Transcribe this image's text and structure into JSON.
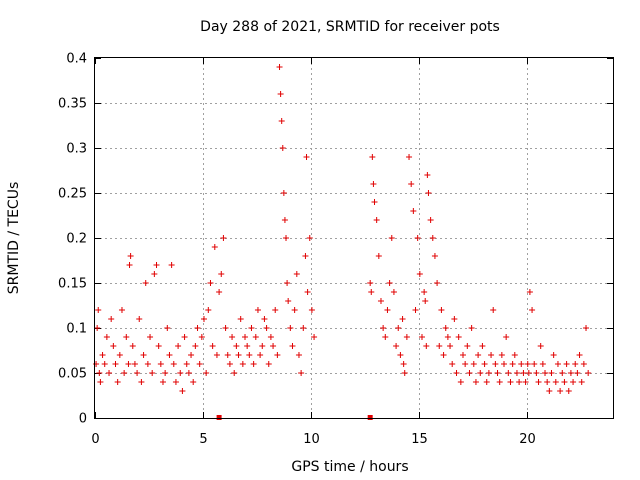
{
  "chart_data": {
    "type": "scatter",
    "title": "Day 288 of 2021, SRMTID for receiver pots",
    "xlabel": "GPS time / hours",
    "ylabel": "SRMTID / TECUs",
    "xlim": [
      0,
      24
    ],
    "ylim": [
      0,
      0.4
    ],
    "xticks": [
      0,
      5,
      10,
      15,
      20
    ],
    "xtick_labels": [
      "0",
      "5",
      "10",
      "15",
      "20"
    ],
    "yticks": [
      0,
      0.05,
      0.1,
      0.15,
      0.2,
      0.25,
      0.3,
      0.35,
      0.4
    ],
    "ytick_labels": [
      "0",
      "0.05",
      "0.1",
      "0.15",
      "0.2",
      "0.25",
      "0.3",
      "0.35",
      "0.4"
    ],
    "grid": true,
    "marker": "+",
    "color": "#e00000",
    "data_gap_hours": [
      10.2,
      12.7
    ],
    "gap_markers_x": [
      5.75,
      12.75
    ],
    "series": [
      {
        "name": "SRMTID",
        "x": [
          0.05,
          0.1,
          0.15,
          0.2,
          0.25,
          0.35,
          0.45,
          0.55,
          0.65,
          0.75,
          0.85,
          0.95,
          1.05,
          1.15,
          1.25,
          1.35,
          1.45,
          1.55,
          1.6,
          1.65,
          1.75,
          1.85,
          1.95,
          2.05,
          2.15,
          2.25,
          2.35,
          2.45,
          2.55,
          2.65,
          2.75,
          2.85,
          2.95,
          3.05,
          3.15,
          3.25,
          3.35,
          3.45,
          3.55,
          3.65,
          3.75,
          3.85,
          3.95,
          4.05,
          4.15,
          4.25,
          4.35,
          4.45,
          4.55,
          4.65,
          4.75,
          4.85,
          4.95,
          5.05,
          5.15,
          5.25,
          5.35,
          5.45,
          5.55,
          5.65,
          5.75,
          5.85,
          5.95,
          6.05,
          6.15,
          6.25,
          6.35,
          6.45,
          6.55,
          6.65,
          6.75,
          6.85,
          6.95,
          7.05,
          7.15,
          7.25,
          7.35,
          7.45,
          7.55,
          7.65,
          7.75,
          7.85,
          7.95,
          8.05,
          8.15,
          8.25,
          8.35,
          8.45,
          8.55,
          8.6,
          8.65,
          8.7,
          8.75,
          8.8,
          8.85,
          8.9,
          8.95,
          9.05,
          9.15,
          9.25,
          9.35,
          9.45,
          9.55,
          9.65,
          9.75,
          9.8,
          9.85,
          9.95,
          10.05,
          10.15,
          12.75,
          12.8,
          12.85,
          12.9,
          12.95,
          13.05,
          13.15,
          13.25,
          13.35,
          13.45,
          13.55,
          13.65,
          13.75,
          13.85,
          13.95,
          14.05,
          14.15,
          14.25,
          14.3,
          14.35,
          14.45,
          14.55,
          14.65,
          14.75,
          14.85,
          14.95,
          15.05,
          15.15,
          15.25,
          15.3,
          15.35,
          15.4,
          15.45,
          15.55,
          15.65,
          15.75,
          15.85,
          15.95,
          16.05,
          16.15,
          16.25,
          16.35,
          16.45,
          16.55,
          16.65,
          16.75,
          16.85,
          16.95,
          17.05,
          17.15,
          17.25,
          17.35,
          17.45,
          17.55,
          17.65,
          17.75,
          17.85,
          17.95,
          18.05,
          18.15,
          18.25,
          18.35,
          18.45,
          18.55,
          18.65,
          18.75,
          18.85,
          18.95,
          19.05,
          19.15,
          19.25,
          19.35,
          19.45,
          19.55,
          19.65,
          19.75,
          19.85,
          19.95,
          20.05,
          20.1,
          20.15,
          20.25,
          20.35,
          20.45,
          20.55,
          20.65,
          20.75,
          20.85,
          20.95,
          21.05,
          21.15,
          21.25,
          21.35,
          21.45,
          21.55,
          21.65,
          21.75,
          21.85,
          21.95,
          22.05,
          22.15,
          22.25,
          22.35,
          22.45,
          22.55,
          22.65,
          22.75,
          22.85
        ],
        "y": [
          0.06,
          0.1,
          0.12,
          0.05,
          0.04,
          0.07,
          0.06,
          0.09,
          0.05,
          0.11,
          0.08,
          0.06,
          0.04,
          0.07,
          0.12,
          0.05,
          0.09,
          0.06,
          0.17,
          0.18,
          0.08,
          0.06,
          0.05,
          0.11,
          0.04,
          0.07,
          0.15,
          0.06,
          0.09,
          0.05,
          0.16,
          0.17,
          0.08,
          0.06,
          0.04,
          0.05,
          0.1,
          0.07,
          0.17,
          0.06,
          0.04,
          0.08,
          0.05,
          0.03,
          0.09,
          0.06,
          0.05,
          0.07,
          0.04,
          0.08,
          0.1,
          0.06,
          0.09,
          0.11,
          0.05,
          0.12,
          0.15,
          0.08,
          0.19,
          0.07,
          0.14,
          0.16,
          0.2,
          0.1,
          0.07,
          0.06,
          0.09,
          0.05,
          0.08,
          0.07,
          0.11,
          0.06,
          0.09,
          0.08,
          0.07,
          0.1,
          0.06,
          0.09,
          0.12,
          0.07,
          0.08,
          0.11,
          0.1,
          0.06,
          0.09,
          0.08,
          0.12,
          0.07,
          0.39,
          0.36,
          0.33,
          0.3,
          0.25,
          0.22,
          0.2,
          0.15,
          0.13,
          0.1,
          0.08,
          0.12,
          0.16,
          0.07,
          0.05,
          0.1,
          0.18,
          0.29,
          0.14,
          0.2,
          0.12,
          0.09,
          0.15,
          0.14,
          0.29,
          0.26,
          0.24,
          0.22,
          0.18,
          0.13,
          0.1,
          0.09,
          0.12,
          0.15,
          0.2,
          0.14,
          0.08,
          0.1,
          0.07,
          0.11,
          0.06,
          0.05,
          0.09,
          0.29,
          0.26,
          0.23,
          0.12,
          0.2,
          0.16,
          0.09,
          0.14,
          0.13,
          0.08,
          0.27,
          0.25,
          0.22,
          0.2,
          0.18,
          0.15,
          0.08,
          0.12,
          0.07,
          0.1,
          0.09,
          0.08,
          0.06,
          0.11,
          0.05,
          0.09,
          0.04,
          0.07,
          0.06,
          0.08,
          0.05,
          0.1,
          0.06,
          0.04,
          0.07,
          0.05,
          0.08,
          0.06,
          0.04,
          0.05,
          0.07,
          0.12,
          0.06,
          0.05,
          0.04,
          0.07,
          0.06,
          0.09,
          0.05,
          0.04,
          0.06,
          0.07,
          0.05,
          0.04,
          0.06,
          0.05,
          0.04,
          0.06,
          0.05,
          0.14,
          0.12,
          0.06,
          0.05,
          0.04,
          0.08,
          0.06,
          0.05,
          0.04,
          0.03,
          0.05,
          0.07,
          0.04,
          0.06,
          0.03,
          0.05,
          0.04,
          0.06,
          0.03,
          0.05,
          0.04,
          0.06,
          0.05,
          0.07,
          0.04,
          0.06,
          0.1,
          0.05
        ]
      }
    ]
  }
}
